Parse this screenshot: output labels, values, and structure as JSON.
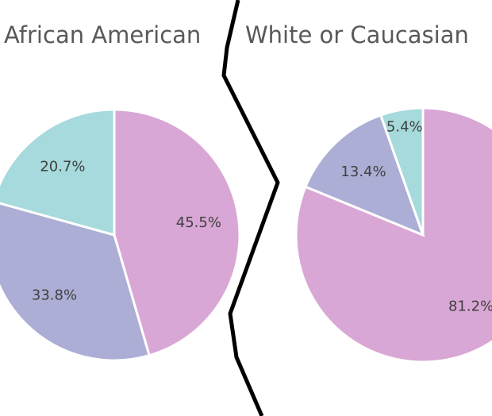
{
  "chart_data": [
    {
      "type": "pie",
      "title": "African American",
      "values": [
        45.5,
        33.8,
        20.7
      ],
      "value_labels": [
        "45.5%",
        "33.8%",
        "20.7%"
      ],
      "colors": [
        "#d9a7d5",
        "#adaed6",
        "#a6dadc"
      ]
    },
    {
      "type": "pie",
      "title": "White or Caucasian",
      "values": [
        81.2,
        13.4,
        5.4
      ],
      "value_labels": [
        "81.2%",
        "13.4%",
        "5.4%"
      ],
      "colors": [
        "#d9a7d5",
        "#adaed6",
        "#a6dadc"
      ]
    }
  ]
}
